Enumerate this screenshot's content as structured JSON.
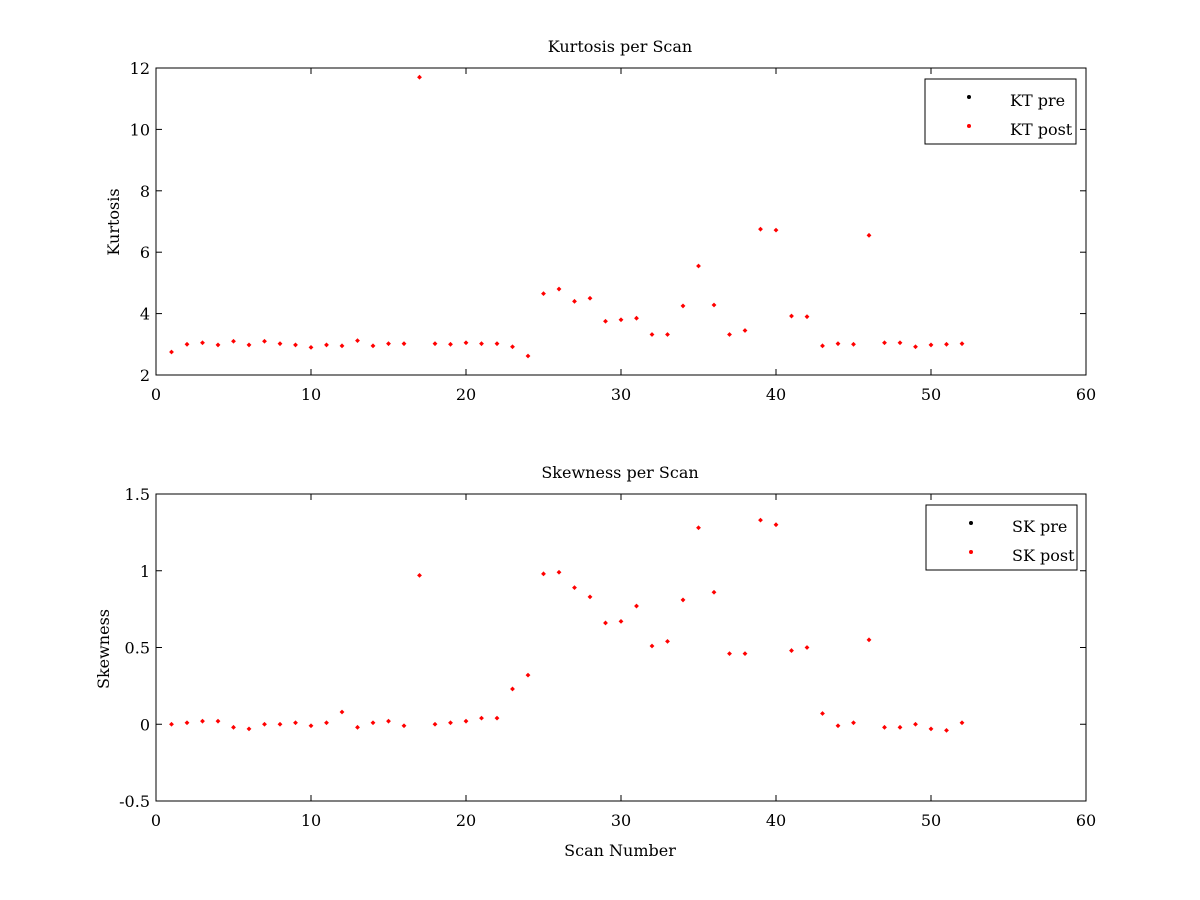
{
  "colors": {
    "background": "#ffffff",
    "axes": "#000000",
    "pre": "#000000",
    "post": "#ff0000"
  },
  "chart_data": [
    {
      "type": "scatter",
      "title": "Kurtosis per Scan",
      "xlabel": "",
      "ylabel": "Kurtosis",
      "xlim": [
        0,
        60
      ],
      "ylim": [
        2,
        12
      ],
      "xticks": [
        0,
        10,
        20,
        30,
        40,
        50,
        60
      ],
      "yticks": [
        2,
        4,
        6,
        8,
        10,
        12
      ],
      "grid": false,
      "legend_position": "top-right",
      "series": [
        {
          "name": "KT pre",
          "marker": "dot",
          "x": [],
          "y": []
        },
        {
          "name": "KT post",
          "marker": "dot",
          "x": [
            1,
            2,
            3,
            4,
            5,
            6,
            7,
            8,
            9,
            10,
            11,
            12,
            13,
            14,
            15,
            16,
            17,
            18,
            19,
            20,
            21,
            22,
            23,
            24,
            25,
            26,
            27,
            28,
            29,
            30,
            31,
            32,
            33,
            34,
            35,
            36,
            37,
            38,
            39,
            40,
            41,
            42,
            43,
            44,
            45,
            46,
            47,
            48,
            49,
            50,
            51,
            52
          ],
          "y": [
            2.75,
            3.0,
            3.05,
            2.98,
            3.1,
            2.98,
            3.1,
            3.02,
            2.98,
            2.9,
            2.98,
            2.95,
            3.12,
            2.95,
            3.02,
            3.02,
            11.7,
            3.02,
            3.0,
            3.05,
            3.02,
            3.02,
            2.92,
            2.62,
            4.65,
            4.8,
            4.4,
            4.5,
            3.75,
            3.8,
            3.85,
            3.32,
            3.32,
            4.25,
            5.55,
            4.28,
            3.32,
            3.45,
            6.75,
            6.72,
            3.92,
            3.9,
            2.95,
            3.02,
            3.0,
            6.55,
            3.05,
            3.05,
            2.92,
            2.98,
            3.0,
            3.02
          ]
        }
      ]
    },
    {
      "type": "scatter",
      "title": "Skewness per Scan",
      "xlabel": "Scan Number",
      "ylabel": "Skewness",
      "xlim": [
        0,
        60
      ],
      "ylim": [
        -0.5,
        1.5
      ],
      "xticks": [
        0,
        10,
        20,
        30,
        40,
        50,
        60
      ],
      "yticks": [
        -0.5,
        0,
        0.5,
        1,
        1.5
      ],
      "grid": false,
      "legend_position": "top-right",
      "series": [
        {
          "name": "SK pre",
          "marker": "dot",
          "x": [],
          "y": []
        },
        {
          "name": "SK post",
          "marker": "dot",
          "x": [
            1,
            2,
            3,
            4,
            5,
            6,
            7,
            8,
            9,
            10,
            11,
            12,
            13,
            14,
            15,
            16,
            17,
            18,
            19,
            20,
            21,
            22,
            23,
            24,
            25,
            26,
            27,
            28,
            29,
            30,
            31,
            32,
            33,
            34,
            35,
            36,
            37,
            38,
            39,
            40,
            41,
            42,
            43,
            44,
            45,
            46,
            47,
            48,
            49,
            50,
            51,
            52
          ],
          "y": [
            0.0,
            0.01,
            0.02,
            0.02,
            -0.02,
            -0.03,
            0.0,
            0.0,
            0.01,
            -0.01,
            0.01,
            0.08,
            -0.02,
            0.01,
            0.02,
            -0.01,
            0.97,
            0.0,
            0.01,
            0.02,
            0.04,
            0.04,
            0.23,
            0.32,
            0.98,
            0.99,
            0.89,
            0.83,
            0.66,
            0.67,
            0.77,
            0.51,
            0.54,
            0.81,
            1.28,
            0.86,
            0.46,
            0.46,
            1.33,
            1.3,
            0.48,
            0.5,
            0.07,
            -0.01,
            0.01,
            0.55,
            -0.02,
            -0.02,
            0.0,
            -0.03,
            -0.04,
            0.01
          ]
        }
      ]
    }
  ]
}
